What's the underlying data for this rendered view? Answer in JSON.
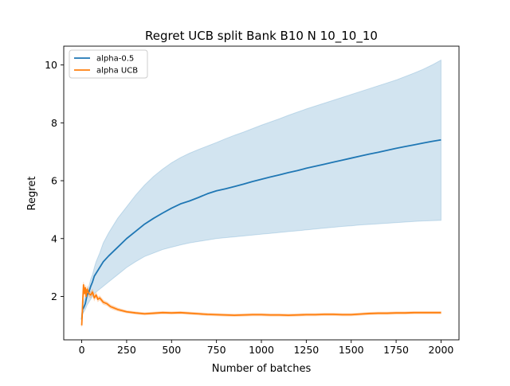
{
  "chart_data": {
    "type": "line",
    "title": "Regret UCB split Bank B10 N 10_10_10",
    "xlabel": "Number of batches",
    "ylabel": "Regret",
    "xlim": [
      -100,
      2100
    ],
    "ylim": [
      0.5,
      10.65
    ],
    "xticks": [
      0,
      250,
      500,
      750,
      1000,
      1250,
      1500,
      1750,
      2000
    ],
    "yticks": [
      2,
      4,
      6,
      8,
      10
    ],
    "xtick_labels": [
      "0",
      "250",
      "500",
      "750",
      "1000",
      "1250",
      "1500",
      "1750",
      "2000"
    ],
    "ytick_labels": [
      "2",
      "4",
      "6",
      "8",
      "10"
    ],
    "legend_position": "top-left",
    "grid": false,
    "series": [
      {
        "name": "alpha-0.5",
        "color": "#1f77b4",
        "band_color": "#1f77b4",
        "x": [
          0,
          5,
          10,
          20,
          30,
          40,
          50,
          60,
          70,
          80,
          100,
          120,
          150,
          200,
          250,
          300,
          350,
          400,
          450,
          500,
          550,
          600,
          650,
          700,
          750,
          800,
          850,
          900,
          950,
          1000,
          1050,
          1100,
          1150,
          1200,
          1250,
          1300,
          1350,
          1400,
          1450,
          1500,
          1550,
          1600,
          1650,
          1700,
          1750,
          1800,
          1850,
          1900,
          1950,
          2000
        ],
        "mean": [
          1.2,
          1.55,
          1.6,
          1.75,
          2.05,
          2.15,
          2.35,
          2.5,
          2.7,
          2.8,
          3.0,
          3.2,
          3.4,
          3.7,
          4.0,
          4.25,
          4.5,
          4.7,
          4.88,
          5.05,
          5.2,
          5.3,
          5.42,
          5.55,
          5.65,
          5.72,
          5.8,
          5.88,
          5.97,
          6.05,
          6.13,
          6.2,
          6.28,
          6.35,
          6.43,
          6.5,
          6.57,
          6.64,
          6.71,
          6.78,
          6.85,
          6.92,
          6.98,
          7.05,
          7.12,
          7.18,
          7.24,
          7.3,
          7.36,
          7.41
        ],
        "upper": [
          1.3,
          1.7,
          1.8,
          2.0,
          2.2,
          2.35,
          2.6,
          2.75,
          3.0,
          3.2,
          3.5,
          3.85,
          4.2,
          4.7,
          5.1,
          5.5,
          5.85,
          6.15,
          6.4,
          6.62,
          6.8,
          6.95,
          7.08,
          7.2,
          7.32,
          7.45,
          7.57,
          7.68,
          7.8,
          7.92,
          8.03,
          8.14,
          8.26,
          8.37,
          8.48,
          8.58,
          8.68,
          8.78,
          8.88,
          8.98,
          9.08,
          9.18,
          9.28,
          9.38,
          9.48,
          9.6,
          9.72,
          9.85,
          10.0,
          10.17
        ],
        "lower": [
          1.1,
          1.4,
          1.45,
          1.55,
          1.7,
          1.8,
          1.9,
          2.0,
          2.1,
          2.15,
          2.25,
          2.35,
          2.5,
          2.75,
          3.0,
          3.2,
          3.38,
          3.5,
          3.62,
          3.7,
          3.78,
          3.85,
          3.9,
          3.95,
          4.0,
          4.03,
          4.06,
          4.09,
          4.12,
          4.15,
          4.18,
          4.21,
          4.24,
          4.27,
          4.3,
          4.33,
          4.36,
          4.39,
          4.42,
          4.44,
          4.47,
          4.49,
          4.51,
          4.53,
          4.55,
          4.57,
          4.59,
          4.61,
          4.62,
          4.63
        ]
      },
      {
        "name": "alpha UCB",
        "color": "#ff7f0e",
        "band_color": "#ff7f0e",
        "x": [
          0,
          3,
          6,
          10,
          15,
          20,
          25,
          30,
          40,
          50,
          60,
          70,
          80,
          90,
          100,
          120,
          140,
          160,
          180,
          200,
          250,
          300,
          350,
          400,
          450,
          500,
          550,
          600,
          650,
          700,
          750,
          800,
          850,
          900,
          950,
          1000,
          1050,
          1100,
          1150,
          1200,
          1250,
          1300,
          1350,
          1400,
          1450,
          1500,
          1550,
          1600,
          1650,
          1700,
          1750,
          1800,
          1850,
          1900,
          1950,
          2000
        ],
        "mean": [
          1.0,
          1.4,
          1.9,
          2.4,
          2.1,
          2.3,
          2.0,
          2.25,
          2.1,
          2.05,
          2.15,
          1.95,
          2.05,
          1.9,
          1.95,
          1.8,
          1.75,
          1.65,
          1.6,
          1.55,
          1.47,
          1.43,
          1.4,
          1.42,
          1.44,
          1.43,
          1.44,
          1.42,
          1.4,
          1.38,
          1.37,
          1.36,
          1.35,
          1.36,
          1.37,
          1.37,
          1.36,
          1.36,
          1.35,
          1.36,
          1.37,
          1.37,
          1.38,
          1.38,
          1.37,
          1.37,
          1.39,
          1.41,
          1.42,
          1.42,
          1.43,
          1.43,
          1.44,
          1.44,
          1.44,
          1.44
        ],
        "upper": [
          1.05,
          1.48,
          2.0,
          2.5,
          2.22,
          2.4,
          2.12,
          2.36,
          2.2,
          2.15,
          2.24,
          2.04,
          2.13,
          1.98,
          2.02,
          1.87,
          1.81,
          1.71,
          1.66,
          1.6,
          1.51,
          1.47,
          1.44,
          1.46,
          1.48,
          1.47,
          1.48,
          1.46,
          1.44,
          1.42,
          1.41,
          1.4,
          1.39,
          1.4,
          1.41,
          1.41,
          1.4,
          1.4,
          1.39,
          1.4,
          1.41,
          1.41,
          1.42,
          1.42,
          1.41,
          1.41,
          1.43,
          1.45,
          1.46,
          1.46,
          1.47,
          1.47,
          1.48,
          1.48,
          1.48,
          1.48
        ],
        "lower": [
          0.95,
          1.32,
          1.8,
          2.3,
          1.98,
          2.2,
          1.88,
          2.14,
          2.0,
          1.95,
          2.06,
          1.86,
          1.97,
          1.82,
          1.88,
          1.73,
          1.69,
          1.59,
          1.54,
          1.5,
          1.43,
          1.39,
          1.36,
          1.38,
          1.4,
          1.39,
          1.4,
          1.38,
          1.36,
          1.34,
          1.33,
          1.32,
          1.31,
          1.32,
          1.33,
          1.33,
          1.32,
          1.32,
          1.31,
          1.32,
          1.33,
          1.33,
          1.34,
          1.34,
          1.33,
          1.33,
          1.35,
          1.37,
          1.38,
          1.38,
          1.39,
          1.39,
          1.4,
          1.4,
          1.4,
          1.4
        ]
      }
    ]
  }
}
